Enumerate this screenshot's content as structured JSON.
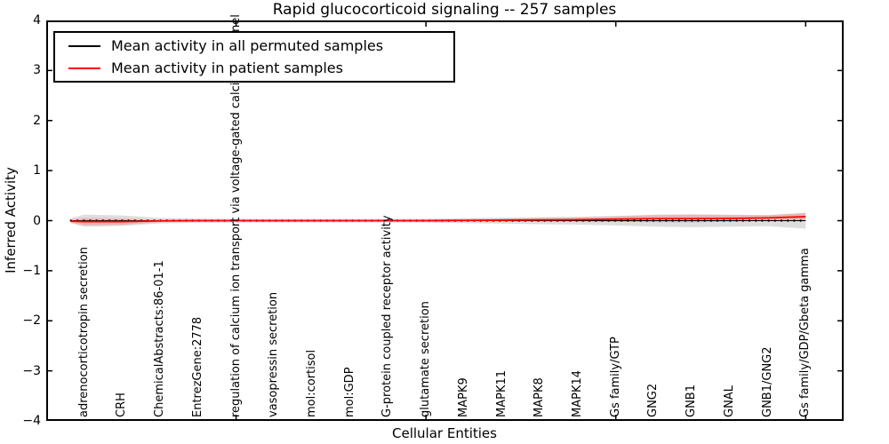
{
  "legend": {
    "items": [
      {
        "label": "Mean activity in all permuted samples",
        "color": "#000000"
      },
      {
        "label": "Mean activity in patient samples",
        "color": "#ff0000"
      }
    ]
  },
  "chart_data": {
    "type": "line",
    "title": "Rapid glucocorticoid signaling -- 257 samples",
    "xlabel": "Cellular Entities",
    "ylabel": "Inferred Activity",
    "xlim": [
      0,
      21
    ],
    "ylim": [
      -4,
      4
    ],
    "grid": false,
    "legend_position": "upper left",
    "x_major_ticks": [
      5,
      10,
      15,
      20
    ],
    "y_ticks": [
      4,
      3,
      2,
      1,
      0,
      -1,
      -2,
      -3,
      -4
    ],
    "y_tick_labels": [
      "4",
      "3",
      "2",
      "1",
      "0",
      "−1",
      "−2",
      "−3",
      "−4"
    ],
    "categories": [
      "adrenocorticotropin secretion",
      "CRH",
      "ChemicalAbstracts:86-01-1",
      "EntrezGene:2778",
      "regulation of calcium ion transport via voltage-gated calcium channel",
      "vasopressin secretion",
      "mol:cortisol",
      "mol:GDP",
      "G-protein coupled receptor activity",
      "glutamate secretion",
      "MAPK9",
      "MAPK11",
      "MAPK8",
      "MAPK14",
      "Gs family/GTP",
      "GNG2",
      "GNB1",
      "GNAL",
      "GNB1/GNG2",
      "Gs family/GDP/Gbeta gamma"
    ],
    "category_x": [
      1,
      2,
      3,
      4,
      5,
      6,
      7,
      8,
      9,
      10,
      11,
      12,
      13,
      14,
      15,
      16,
      17,
      18,
      19,
      20
    ],
    "x": [
      0.65,
      1,
      2,
      3,
      4,
      5,
      6,
      7,
      8,
      9,
      10,
      11,
      12,
      13,
      14,
      15,
      16,
      17,
      18,
      19,
      20
    ],
    "series": [
      {
        "name": "Mean activity in all permuted samples",
        "color": "#000000",
        "line_style": "solid-with-dot-markers",
        "values": [
          0,
          0,
          0,
          0,
          0,
          0,
          0,
          0,
          0,
          0,
          0,
          0,
          0,
          0,
          0,
          0,
          0,
          0,
          0,
          0,
          0
        ],
        "band": [
          0.05,
          0.12,
          0.105,
          0.055,
          0.045,
          0.04,
          0.038,
          0.038,
          0.038,
          0.038,
          0.04,
          0.05,
          0.06,
          0.07,
          0.08,
          0.095,
          0.12,
          0.13,
          0.12,
          0.11,
          0.16
        ],
        "band_color": "rgba(0,0,0,0.13)"
      },
      {
        "name": "Mean activity in patient samples",
        "color": "#ff0000",
        "line_style": "solid",
        "values": [
          -0.01,
          -0.02,
          -0.02,
          -0.005,
          0,
          0,
          0,
          0,
          0,
          0,
          0,
          0.005,
          0.01,
          0.015,
          0.02,
          0.03,
          0.04,
          0.04,
          0.045,
          0.055,
          0.08
        ],
        "band": [
          0.03,
          0.075,
          0.065,
          0.025,
          0.02,
          0.018,
          0.018,
          0.018,
          0.018,
          0.018,
          0.02,
          0.025,
          0.03,
          0.035,
          0.04,
          0.055,
          0.07,
          0.075,
          0.065,
          0.055,
          0.07
        ],
        "band_color": "rgba(255,0,0,0.17)"
      }
    ]
  }
}
